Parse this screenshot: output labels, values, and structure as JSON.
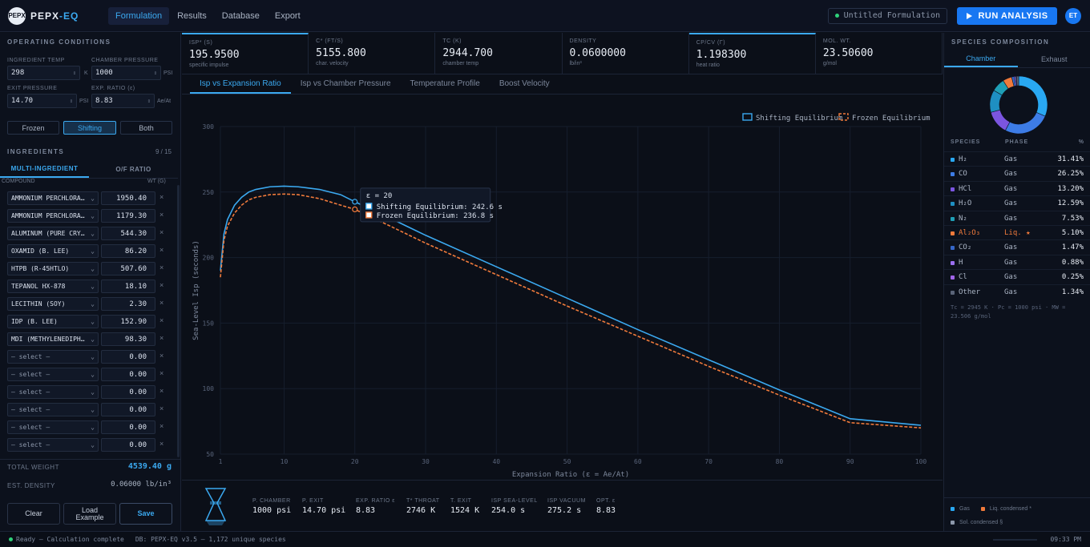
{
  "app": {
    "logo_mark": "PEPX",
    "name_a": "PEPX",
    "name_b": "-EQ"
  },
  "nav": [
    "Formulation",
    "Results",
    "Database",
    "Export"
  ],
  "formulation_name": "Untitled Formulation",
  "run_label": "RUN ANALYSIS",
  "user_initials": "ET",
  "operating": {
    "title": "OPERATING CONDITIONS",
    "ingredient_temp_label": "INGREDIENT TEMP",
    "ingredient_temp": "298",
    "ingredient_temp_unit": "K",
    "chamber_pressure_label": "CHAMBER PRESSURE",
    "chamber_pressure": "1000",
    "chamber_pressure_unit": "PSI",
    "exit_pressure_label": "EXIT PRESSURE",
    "exit_pressure": "14.70",
    "exit_pressure_unit": "PSI",
    "exp_ratio_label": "EXP. RATIO (ε)",
    "exp_ratio": "8.83",
    "exp_ratio_unit": "Ae/At",
    "modes": [
      "Frozen",
      "Shifting",
      "Both"
    ]
  },
  "ingredients": {
    "title": "INGREDIENTS",
    "count": "9 / 15",
    "tabs": [
      "MULTI-INGREDIENT",
      "O/F RATIO"
    ],
    "col_compound": "COMPOUND",
    "col_wt": "WT (G)",
    "rows": [
      {
        "name": "AMMONIUM PERCHLORATE",
        "wt": "1950.40"
      },
      {
        "name": "AMMONIUM PERCHLORATE",
        "wt": "1179.30"
      },
      {
        "name": "ALUMINUM (PURE CRYSTAL)",
        "wt": "544.30"
      },
      {
        "name": "OXAMID (B. LEE)",
        "wt": "86.20"
      },
      {
        "name": "HTPB (R-45HTLO)",
        "wt": "507.60"
      },
      {
        "name": "TEPANOL HX-878",
        "wt": "18.10"
      },
      {
        "name": "LECITHIN (SOY)",
        "wt": "2.30"
      },
      {
        "name": "IDP (B. LEE)",
        "wt": "152.90"
      },
      {
        "name": "MDI (METHYLENEDIPHENYL)",
        "wt": "98.30"
      },
      {
        "name": "— select —",
        "wt": "0.00"
      },
      {
        "name": "— select —",
        "wt": "0.00"
      },
      {
        "name": "— select —",
        "wt": "0.00"
      },
      {
        "name": "— select —",
        "wt": "0.00"
      },
      {
        "name": "— select —",
        "wt": "0.00"
      },
      {
        "name": "— select —",
        "wt": "0.00"
      }
    ],
    "total_weight_label": "TOTAL WEIGHT",
    "total_weight": "4539.40 g",
    "est_density_label": "EST. DENSITY",
    "est_density": "0.06000 lb/in³"
  },
  "actions": {
    "clear": "Clear",
    "load_example": "Load Example",
    "save": "Save"
  },
  "metrics": [
    {
      "label": "ISP* (S)",
      "value": "195.9500",
      "sub": "specific impulse"
    },
    {
      "label": "C* (FT/S)",
      "value": "5155.800",
      "sub": "char. velocity"
    },
    {
      "label": "TC (K)",
      "value": "2944.700",
      "sub": "chamber temp"
    },
    {
      "label": "DENSITY",
      "value": "0.0600000",
      "sub": "lb/in³"
    },
    {
      "label": "CP/CV (Γ)",
      "value": "1.198300",
      "sub": "heat ratio"
    },
    {
      "label": "MOL. WT.",
      "value": "23.50600",
      "sub": "g/mol"
    }
  ],
  "chart_tabs": [
    "Isp vs Expansion Ratio",
    "Isp vs Chamber Pressure",
    "Temperature Profile",
    "Boost Velocity"
  ],
  "chart_data": {
    "type": "line",
    "xlabel": "Expansion Ratio (ε = Ae/At)",
    "ylabel": "Sea-Level Isp (seconds)",
    "xlim": [
      1,
      100
    ],
    "ylim": [
      50,
      300
    ],
    "xticks": [
      1,
      10,
      20,
      30,
      40,
      50,
      60,
      70,
      80,
      90,
      100
    ],
    "yticks": [
      50,
      100,
      150,
      200,
      250,
      300
    ],
    "grid": true,
    "legend_position": "top-right",
    "series": [
      {
        "name": "Shifting Equilibrium",
        "color": "#3ba9f0",
        "style": "solid",
        "x": [
          1,
          1.5,
          2,
          3,
          4,
          5,
          6,
          8,
          10,
          12,
          15,
          18,
          20,
          25,
          30,
          40,
          50,
          60,
          70,
          80,
          90,
          100
        ],
        "y": [
          190,
          218,
          229,
          240,
          246,
          250,
          252,
          254,
          254.5,
          254,
          252,
          248,
          242.6,
          230,
          217,
          193,
          169,
          145,
          122,
          99,
          77,
          72
        ]
      },
      {
        "name": "Frozen Equilibrium",
        "color": "#f07a3b",
        "style": "dashed",
        "x": [
          1,
          1.5,
          2,
          3,
          4,
          5,
          6,
          8,
          10,
          12,
          15,
          18,
          20,
          25,
          30,
          40,
          50,
          60,
          70,
          80,
          90,
          100
        ],
        "y": [
          185,
          213,
          224,
          234,
          240,
          244,
          246,
          248,
          248.5,
          248,
          245,
          240,
          236.8,
          224,
          211,
          187,
          163,
          140,
          117,
          95,
          74,
          70
        ]
      }
    ],
    "tooltip": {
      "title": "ε = 20",
      "lines": [
        "Shifting Equilibrium: 242.6 s",
        "Frozen Equilibrium: 236.8 s"
      ],
      "x": 20
    }
  },
  "bottom": [
    {
      "label": "P. CHAMBER",
      "value": "1000 psi"
    },
    {
      "label": "P. EXIT",
      "value": "14.70 psi"
    },
    {
      "label": "EXP. RATIO ε",
      "value": "8.83"
    },
    {
      "label": "T* THROAT",
      "value": "2746 K"
    },
    {
      "label": "T. EXIT",
      "value": "1524 K"
    },
    {
      "label": "ISP SEA-LEVEL",
      "value": "254.0 s"
    },
    {
      "label": "ISP VACUUM",
      "value": "275.2 s"
    },
    {
      "label": "OPT. ε",
      "value": "8.83"
    }
  ],
  "species": {
    "title": "SPECIES COMPOSITION",
    "tabs": [
      "Chamber",
      "Exhaust"
    ],
    "col_species": "SPECIES",
    "col_phase": "PHASE",
    "col_pct": "%",
    "rows": [
      {
        "name": "H₂",
        "phase": "Gas",
        "pct": "31.41%",
        "value": 31.41,
        "color": "#29a8f2"
      },
      {
        "name": "CO",
        "phase": "Gas",
        "pct": "26.25%",
        "value": 26.25,
        "color": "#3d7ce6"
      },
      {
        "name": "HCl",
        "phase": "Gas",
        "pct": "13.20%",
        "value": 13.2,
        "color": "#7b55e0"
      },
      {
        "name": "H₂O",
        "phase": "Gas",
        "pct": "12.59%",
        "value": 12.59,
        "color": "#1e8fc2"
      },
      {
        "name": "N₂",
        "phase": "Gas",
        "pct": "7.53%",
        "value": 7.53,
        "color": "#1f9fb6"
      },
      {
        "name": "Al₂O₃",
        "phase": "Liq. ★",
        "pct": "5.10%",
        "value": 5.1,
        "color": "#f07a3b"
      },
      {
        "name": "CO₂",
        "phase": "Gas",
        "pct": "1.47%",
        "value": 1.47,
        "color": "#3566c8"
      },
      {
        "name": "H",
        "phase": "Gas",
        "pct": "0.88%",
        "value": 0.88,
        "color": "#9a6ff0"
      },
      {
        "name": "Cl",
        "phase": "Gas",
        "pct": "0.25%",
        "value": 0.25,
        "color": "#a064e8"
      },
      {
        "name": "Other",
        "phase": "Gas",
        "pct": "1.34%",
        "value": 1.34,
        "color": "#5a6478"
      }
    ],
    "footnote": "Tc = 2945 K · Pc = 1000 psi · MW = 23.506 g/mol",
    "legend": [
      "Gas",
      "Liq. condensed *",
      "Sol. condensed §"
    ]
  },
  "status": {
    "text": "Ready — Calculation complete",
    "db": "DB: PEPX-EQ v3.5 — 1,172 unique species",
    "time": "09:33 PM"
  }
}
